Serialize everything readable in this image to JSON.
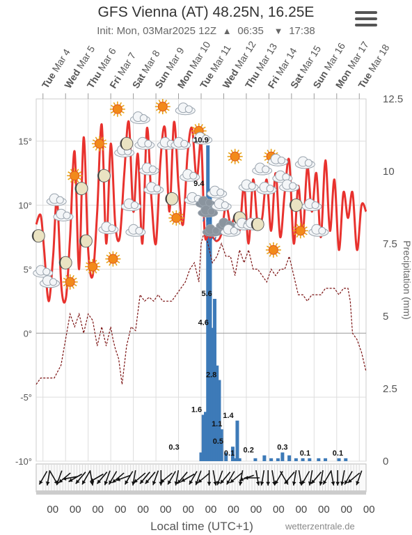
{
  "header": {
    "title": "GFS Vienna (AT) 48.25N, 16.25E",
    "init": "Init: Mon, 03Mar2025 12Z",
    "sunrise": "06:35",
    "sunset": "17:38"
  },
  "footer": {
    "xlabel": "Local time (UTC+1)",
    "credits": "wetterzentrale.de"
  },
  "colors": {
    "temperature": "#e8322e",
    "dewpoint": "#7a1010",
    "cold_dewpoint": "#5b8fd6",
    "precipitation": "#3d7ab8",
    "grid": "#dddddd"
  },
  "chart_data": {
    "type": "line",
    "days": [
      {
        "dow": "Tue",
        "date": "Mar 4"
      },
      {
        "dow": "Wed",
        "date": "Mar 5"
      },
      {
        "dow": "Thu",
        "date": "Mar 6"
      },
      {
        "dow": "Fri",
        "date": "Mar 7"
      },
      {
        "dow": "Sat",
        "date": "Mar 8"
      },
      {
        "dow": "Sun",
        "date": "Mar 9"
      },
      {
        "dow": "Mon",
        "date": "Mar 10"
      },
      {
        "dow": "Tue",
        "date": "Mar 11"
      },
      {
        "dow": "Wed",
        "date": "Mar 12"
      },
      {
        "dow": "Thu",
        "date": "Mar 13"
      },
      {
        "dow": "Fri",
        "date": "Mar 14"
      },
      {
        "dow": "Sat",
        "date": "Mar 15"
      },
      {
        "dow": "Sun",
        "date": "Mar 16"
      },
      {
        "dow": "Mon",
        "date": "Mar 17"
      },
      {
        "dow": "Tue",
        "date": "Mar 18"
      }
    ],
    "hour_labels": [
      "00",
      "00",
      "00",
      "00",
      "00",
      "00",
      "00",
      "00",
      "00",
      "00",
      "00",
      "00",
      "00",
      "00",
      "00"
    ],
    "x_range_days": [
      -0.3,
      14.3
    ],
    "y_left": {
      "min": -10,
      "max": 18.3,
      "ticks": [
        -10,
        -5,
        0,
        5,
        10,
        15
      ],
      "labels": [
        "-10°",
        "-5°",
        "0°",
        "5°",
        "10°",
        "15°"
      ]
    },
    "y_right": {
      "min": 0,
      "max": 12.5,
      "ticks": [
        0,
        2.5,
        5,
        7.5,
        10,
        12.5
      ],
      "labels": [
        "0",
        "2.5",
        "5",
        "7.5",
        "10",
        "12.5"
      ],
      "label": "Precipitation (mm)"
    },
    "temperature": {
      "x": [
        -0.3,
        -0.1,
        0.05,
        0.25,
        0.45,
        0.62,
        0.82,
        1.02,
        1.2,
        1.4,
        1.6,
        1.8,
        2.0,
        2.2,
        2.4,
        2.6,
        2.8,
        3.0,
        3.2,
        3.4,
        3.6,
        3.8,
        4.0,
        4.2,
        4.4,
        4.6,
        4.8,
        5.0,
        5.2,
        5.4,
        5.6,
        5.8,
        6.0,
        6.2,
        6.4,
        6.6,
        6.8,
        7.0,
        7.15,
        7.3,
        7.5,
        7.7,
        7.9,
        8.1,
        8.3,
        8.5,
        8.7,
        8.9,
        9.1,
        9.3,
        9.5,
        9.7,
        9.9,
        10.1,
        10.3,
        10.5,
        10.7,
        10.9,
        11.1,
        11.3,
        11.5,
        11.7,
        11.9,
        12.1,
        12.3,
        12.5,
        12.7,
        12.9,
        13.1,
        13.3,
        13.5,
        13.7,
        13.9,
        14.1,
        14.3
      ],
      "y": [
        8.5,
        9.2,
        6.5,
        2.5,
        6.0,
        10.5,
        3.5,
        2.8,
        7.5,
        14.2,
        5.0,
        15.3,
        6.5,
        4.5,
        9.5,
        16.3,
        7.0,
        14.8,
        8.5,
        7.5,
        12.5,
        16.5,
        9.5,
        14.0,
        7.0,
        16.0,
        10.5,
        7.0,
        13.5,
        16.0,
        9.5,
        16.5,
        11.5,
        8.5,
        14.0,
        16.0,
        12.0,
        15.0,
        8.0,
        7.5,
        7.5,
        7.2,
        7.8,
        10.0,
        8.5,
        9.0,
        8.0,
        11.5,
        7.0,
        12.0,
        8.5,
        9.0,
        12.0,
        8.0,
        12.5,
        7.5,
        11.0,
        13.5,
        7.0,
        11.5,
        7.8,
        13.0,
        9.5,
        12.5,
        7.5,
        13.5,
        8.0,
        12.0,
        6.5,
        11.0,
        9.0,
        11.0,
        6.5,
        10.0,
        9.5
      ]
    },
    "dewpoint": {
      "x": [
        -0.3,
        -0.1,
        0.2,
        0.5,
        0.8,
        1.0,
        1.2,
        1.4,
        1.6,
        1.8,
        2.0,
        2.2,
        2.4,
        2.6,
        2.8,
        3.0,
        3.1,
        3.2,
        3.35,
        3.5,
        3.7,
        3.9,
        4.1,
        4.3,
        4.5,
        4.7,
        4.9,
        5.1,
        5.3,
        5.5,
        5.7,
        5.9,
        6.1,
        6.3,
        6.5,
        6.7,
        6.9,
        7.0,
        7.15,
        7.3,
        7.5,
        7.7,
        7.9,
        8.1,
        8.3,
        8.5,
        8.7,
        8.9,
        9.1,
        9.3,
        9.5,
        9.7,
        9.9,
        10.1,
        10.3,
        10.5,
        10.7,
        10.9,
        11.1,
        11.3,
        11.5,
        11.7,
        11.9,
        12.1,
        12.3,
        12.5,
        12.7,
        12.9,
        13.1,
        13.3,
        13.5,
        13.6,
        13.7,
        13.9,
        14.1,
        14.3
      ],
      "y": [
        -4.0,
        -3.5,
        -3.5,
        -3.5,
        -2.5,
        -0.5,
        1.5,
        0.5,
        1.5,
        0.0,
        1.5,
        1.0,
        -1.0,
        0.5,
        -1.0,
        0.5,
        -0.5,
        -1.2,
        -2.0,
        -4.0,
        -1.0,
        0.5,
        0.2,
        3.0,
        2.5,
        2.8,
        2.5,
        3.0,
        2.5,
        2.5,
        2.5,
        3.0,
        3.5,
        4.0,
        5.0,
        5.5,
        4.0,
        7.0,
        8.0,
        7.0,
        5.5,
        6.0,
        7.0,
        6.0,
        6.0,
        4.5,
        6.5,
        5.5,
        6.5,
        5.0,
        5.0,
        4.5,
        4.0,
        5.0,
        4.5,
        5.0,
        5.0,
        6.0,
        4.5,
        3.0,
        3.0,
        2.5,
        3.0,
        3.0,
        3.0,
        3.5,
        3.5,
        3.5,
        3.0,
        3.5,
        3.5,
        2.5,
        0.0,
        -0.5,
        -1.5,
        -3.0
      ]
    },
    "precipitation": {
      "x": [
        7.0,
        7.1,
        7.2,
        7.3,
        7.4,
        7.5,
        7.6,
        7.7,
        7.8,
        7.9,
        8.1,
        8.4,
        8.5,
        8.6,
        8.7,
        9.4,
        9.8,
        10.1,
        10.4,
        10.6,
        10.9,
        11.2,
        11.5,
        11.8,
        12.2,
        12.5,
        13.1,
        13.4
      ],
      "y": [
        0.3,
        1.6,
        1.7,
        10.9,
        9.4,
        4.6,
        5.6,
        3.3,
        2.8,
        1.1,
        0.3,
        0.5,
        0.1,
        1.4,
        0.1,
        0.1,
        0.2,
        0.1,
        0.1,
        0.3,
        0.2,
        0.1,
        0.1,
        0.1,
        0.1,
        0.1,
        0.1,
        0.1
      ]
    },
    "precipitation_labels": [
      {
        "x": 7.0,
        "value": "10.9"
      },
      {
        "x": 6.9,
        "value": "9.4"
      },
      {
        "x": 7.25,
        "value": "5.6"
      },
      {
        "x": 7.1,
        "value": "4.6"
      },
      {
        "x": 7.45,
        "value": "2.8"
      },
      {
        "x": 6.8,
        "value": "1.6"
      },
      {
        "x": 7.7,
        "value": "1.1"
      },
      {
        "x": 8.2,
        "value": "1.4"
      },
      {
        "x": 7.75,
        "value": "0.5"
      },
      {
        "x": 8.25,
        "value": "0.1"
      },
      {
        "x": 5.8,
        "value": "0.3"
      },
      {
        "x": 9.1,
        "value": "0.2"
      },
      {
        "x": 10.6,
        "value": "0.3"
      },
      {
        "x": 11.6,
        "value": "0.1"
      },
      {
        "x": 13.05,
        "value": "0.1"
      }
    ],
    "weather_icons": [
      {
        "x": -0.2,
        "y": 7.6,
        "icon": "moon-icon"
      },
      {
        "x": 0.0,
        "y": 4.8,
        "icon": "cloud-icon"
      },
      {
        "x": 0.3,
        "y": 4.0,
        "icon": "cloud-icon"
      },
      {
        "x": 0.6,
        "y": 10.4,
        "icon": "cloud-icon"
      },
      {
        "x": 0.9,
        "y": 9.2,
        "icon": "cloud-icon"
      },
      {
        "x": 1.0,
        "y": 5.5,
        "icon": "moon-icon"
      },
      {
        "x": 1.2,
        "y": 4.0,
        "icon": "sun-icon"
      },
      {
        "x": 1.4,
        "y": 12.3,
        "icon": "sun-icon"
      },
      {
        "x": 1.7,
        "y": 11.3,
        "icon": "moon-icon"
      },
      {
        "x": 1.9,
        "y": 7.2,
        "icon": "moon-icon"
      },
      {
        "x": 2.2,
        "y": 5.2,
        "icon": "sun-icon"
      },
      {
        "x": 2.5,
        "y": 14.8,
        "icon": "sun-icon"
      },
      {
        "x": 2.7,
        "y": 12.3,
        "icon": "moon-icon"
      },
      {
        "x": 2.9,
        "y": 8.2,
        "icon": "cloud-icon"
      },
      {
        "x": 3.1,
        "y": 5.8,
        "icon": "sun-icon"
      },
      {
        "x": 3.3,
        "y": 17.5,
        "icon": "sun-icon"
      },
      {
        "x": 3.6,
        "y": 14.2,
        "icon": "cloud-icon"
      },
      {
        "x": 3.7,
        "y": 14.8,
        "icon": "moon-icon"
      },
      {
        "x": 3.9,
        "y": 10.0,
        "icon": "cloud-icon"
      },
      {
        "x": 4.1,
        "y": 8.0,
        "icon": "cloud-icon"
      },
      {
        "x": 4.3,
        "y": 16.8,
        "icon": "cloud-icon"
      },
      {
        "x": 4.5,
        "y": 14.8,
        "icon": "cloud-icon"
      },
      {
        "x": 4.7,
        "y": 12.8,
        "icon": "cloud-icon"
      },
      {
        "x": 4.9,
        "y": 11.3,
        "icon": "cloud-icon"
      },
      {
        "x": 5.3,
        "y": 17.7,
        "icon": "sun-icon"
      },
      {
        "x": 5.5,
        "y": 14.8,
        "icon": "cloud-icon"
      },
      {
        "x": 5.7,
        "y": 10.5,
        "icon": "moon-icon"
      },
      {
        "x": 5.9,
        "y": 9.0,
        "icon": "sun-icon"
      },
      {
        "x": 6.1,
        "y": 14.8,
        "icon": "cloud-icon"
      },
      {
        "x": 6.3,
        "y": 17.5,
        "icon": "cloud-icon"
      },
      {
        "x": 6.5,
        "y": 12.3,
        "icon": "cloud-icon"
      },
      {
        "x": 6.7,
        "y": 10.5,
        "icon": "cloud-icon"
      },
      {
        "x": 6.9,
        "y": 15.8,
        "icon": "sun-icon"
      },
      {
        "x": 7.05,
        "y": 15.2,
        "icon": "cloud-icon"
      },
      {
        "x": 7.2,
        "y": 10.2,
        "icon": "rain-cloud-icon"
      },
      {
        "x": 7.3,
        "y": 9.5,
        "icon": "rain-cloud-icon"
      },
      {
        "x": 7.5,
        "y": 8.0,
        "icon": "rain-cloud-icon"
      },
      {
        "x": 7.7,
        "y": 11.0,
        "icon": "cloud-icon"
      },
      {
        "x": 7.9,
        "y": 10.0,
        "icon": "cloud-icon"
      },
      {
        "x": 8.1,
        "y": 8.5,
        "icon": "rain-cloud-icon"
      },
      {
        "x": 8.3,
        "y": 8.0,
        "icon": "cloud-icon"
      },
      {
        "x": 8.5,
        "y": 13.8,
        "icon": "sun-icon"
      },
      {
        "x": 8.7,
        "y": 9.0,
        "icon": "moon-icon"
      },
      {
        "x": 8.9,
        "y": 8.5,
        "icon": "cloud-icon"
      },
      {
        "x": 9.1,
        "y": 11.5,
        "icon": "cloud-icon"
      },
      {
        "x": 9.3,
        "y": 8.5,
        "icon": "cloud-icon"
      },
      {
        "x": 9.5,
        "y": 8.5,
        "icon": "moon-icon"
      },
      {
        "x": 9.7,
        "y": 12.8,
        "icon": "cloud-icon"
      },
      {
        "x": 9.9,
        "y": 11.3,
        "icon": "cloud-icon"
      },
      {
        "x": 10.1,
        "y": 13.8,
        "icon": "sun-icon"
      },
      {
        "x": 10.2,
        "y": 6.5,
        "icon": "sun-icon"
      },
      {
        "x": 10.4,
        "y": 13.5,
        "icon": "cloud-icon"
      },
      {
        "x": 10.6,
        "y": 12.2,
        "icon": "cloud-icon"
      },
      {
        "x": 10.9,
        "y": 11.5,
        "icon": "cloud-icon"
      },
      {
        "x": 11.2,
        "y": 10.0,
        "icon": "moon-icon"
      },
      {
        "x": 11.4,
        "y": 8.0,
        "icon": "sun-icon"
      },
      {
        "x": 11.6,
        "y": 13.3,
        "icon": "cloud-icon"
      },
      {
        "x": 11.9,
        "y": 10.0,
        "icon": "cloud-icon"
      },
      {
        "x": 12.2,
        "y": 8.0,
        "icon": "cloud-icon"
      }
    ],
    "wind_angles_deg": [
      120,
      100,
      60,
      110,
      140,
      170,
      150,
      130,
      120,
      80,
      150,
      130,
      110,
      120,
      140,
      160,
      120,
      100,
      140,
      130,
      130,
      110,
      90,
      140,
      120,
      100,
      130,
      150,
      120,
      110,
      140,
      90,
      80,
      110,
      130,
      120,
      140,
      100,
      160,
      180,
      80,
      100,
      90,
      80,
      120,
      60,
      130,
      100,
      80,
      120,
      100,
      130,
      100,
      120,
      80,
      90,
      100,
      120,
      140,
      110
    ]
  }
}
